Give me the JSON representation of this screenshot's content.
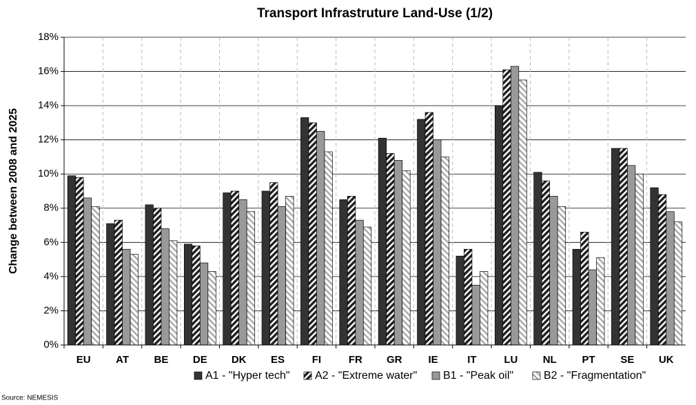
{
  "chart_data": {
    "type": "bar",
    "title": "Transport Infrastruture Land-Use (1/2)",
    "y_label": "Change between 2008 and 2025",
    "source": "Source: NEMESIS",
    "categories": [
      "EU",
      "AT",
      "BE",
      "DE",
      "DK",
      "ES",
      "FI",
      "FR",
      "GR",
      "IE",
      "IT",
      "LU",
      "NL",
      "PT",
      "SE",
      "UK"
    ],
    "series": [
      {
        "name": "A1 - \"Hyper tech\"",
        "color": "#333333",
        "hatched": false,
        "values": [
          9.9,
          7.1,
          8.2,
          5.9,
          8.9,
          9.0,
          13.3,
          8.5,
          12.1,
          13.2,
          5.2,
          14.0,
          10.1,
          5.6,
          11.5,
          9.2
        ]
      },
      {
        "name": "A2 - \"Extreme water\"",
        "color": "#222222",
        "hatched": true,
        "values": [
          9.8,
          7.3,
          8.0,
          5.8,
          9.0,
          9.5,
          13.0,
          8.7,
          11.2,
          13.6,
          5.6,
          16.1,
          9.6,
          6.6,
          11.5,
          8.8
        ]
      },
      {
        "name": "B1 - \"Peak oil\"",
        "color": "#999999",
        "hatched": false,
        "values": [
          8.6,
          5.6,
          6.8,
          4.8,
          8.5,
          8.1,
          12.5,
          7.3,
          10.8,
          12.0,
          3.5,
          16.3,
          8.7,
          4.4,
          10.5,
          7.8
        ]
      },
      {
        "name": "B2 - \"Fragmentation\"",
        "color": "#aaaaaa",
        "hatched": true,
        "values": [
          8.1,
          5.3,
          6.1,
          4.3,
          7.8,
          8.7,
          11.3,
          6.9,
          10.2,
          11.0,
          4.3,
          15.5,
          8.1,
          5.1,
          10.0,
          7.2
        ]
      }
    ],
    "ylim": [
      0,
      18
    ],
    "yticks": [
      {
        "value": 0,
        "label": "0%"
      },
      {
        "value": 2,
        "label": "2%"
      },
      {
        "value": 4,
        "label": "4%"
      },
      {
        "value": 6,
        "label": "6%"
      },
      {
        "value": 8,
        "label": "8%"
      },
      {
        "value": 10,
        "label": "10%"
      },
      {
        "value": 12,
        "label": "12%"
      },
      {
        "value": 14,
        "label": "14%"
      },
      {
        "value": 16,
        "label": "16%"
      },
      {
        "value": 18,
        "label": "18%"
      }
    ],
    "grid": true,
    "legend": "bottom"
  }
}
